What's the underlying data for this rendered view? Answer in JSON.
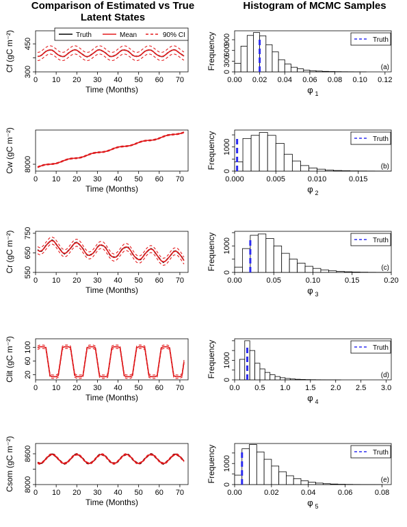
{
  "titles": {
    "left": "Comparison of Estimated vs True Latent States",
    "right": "Histogram of MCMC Samples"
  },
  "colors": {
    "truth": "#000000",
    "mean": "#e41a1c",
    "ci": "#e41a1c",
    "hist_truth": "#2b2bf0"
  },
  "legend_left": [
    "Truth",
    "Mean",
    "90% CI"
  ],
  "legend_right": "Truth",
  "chart_data": [
    {
      "type": "line",
      "panel": "Cf",
      "xlabel": "Time (Months)",
      "ylabel": "Cf (gC m⁻²)",
      "xlim": [
        0,
        74
      ],
      "ylim": [
        300,
        520
      ],
      "xticks": [
        0,
        10,
        20,
        30,
        40,
        50,
        60,
        70
      ],
      "yticks": [
        300,
        375,
        450
      ],
      "ytick_labels": [
        "300",
        "",
        "450"
      ],
      "baseline": 400,
      "amplitude": 18,
      "trend": 0,
      "period": 12,
      "phase": 4,
      "ci": 22,
      "legend": [
        "Truth",
        "Mean",
        "90% CI"
      ]
    },
    {
      "type": "line",
      "panel": "Cw",
      "xlabel": "Time (Months)",
      "ylabel": "Cw (gC m⁻²)",
      "xlim": [
        0,
        74
      ],
      "ylim": [
        7600,
        10000
      ],
      "xticks": [
        0,
        10,
        20,
        30,
        40,
        50,
        60,
        70
      ],
      "yticks": [
        8000
      ],
      "ytick_labels": [
        "8000"
      ],
      "baseline": 7800,
      "amplitude": 40,
      "trend": 29,
      "period": 12,
      "phase": 1,
      "ci": 30
    },
    {
      "type": "line",
      "panel": "Cr",
      "xlabel": "Time (Months)",
      "ylabel": "Cr (gC m⁻²)",
      "xlim": [
        0,
        74
      ],
      "ylim": [
        550,
        760
      ],
      "xticks": [
        0,
        10,
        20,
        30,
        40,
        50,
        60,
        70
      ],
      "yticks": [
        550,
        650,
        750
      ],
      "ytick_labels": [
        "550",
        "650",
        "750"
      ],
      "baseline": 690,
      "amplitude": 30,
      "trend": -0.9,
      "period": 12,
      "phase": 5,
      "ci": 18
    },
    {
      "type": "line",
      "panel": "Clit",
      "xlabel": "Time (Months)",
      "ylabel": "Clit (gC m⁻²)",
      "xlim": [
        0,
        74
      ],
      "ylim": [
        5,
        125
      ],
      "xticks": [
        0,
        10,
        20,
        30,
        40,
        50,
        60,
        70
      ],
      "yticks": [
        20,
        60,
        100
      ],
      "ytick_labels": [
        "20",
        "60",
        "100"
      ],
      "baseline": 58,
      "amplitude": 44,
      "trend": 0,
      "period": 12,
      "phase": 0,
      "ci": 5,
      "square": true
    },
    {
      "type": "line",
      "panel": "Csom",
      "xlabel": "Time (Months)",
      "ylabel": "Csom (gC m⁻²)",
      "xlim": [
        0,
        74
      ],
      "ylim": [
        8000,
        8800
      ],
      "xticks": [
        0,
        10,
        20,
        30,
        40,
        50,
        60,
        70
      ],
      "yticks": [
        8000,
        8300,
        8600
      ],
      "ytick_labels": [
        "8000",
        "",
        "8600"
      ],
      "baseline": 8500,
      "amplitude": 90,
      "trend": 0,
      "period": 12,
      "phase": 5,
      "ci": 15
    },
    {
      "type": "bar",
      "panel": "phi1",
      "tag": "(a)",
      "xlabel": "φ",
      "xlabel_sub": "1",
      "ylabel": "Frequency",
      "xlim": [
        0,
        0.125
      ],
      "ylim": [
        0,
        1150
      ],
      "xticks": [
        0,
        0.02,
        0.04,
        0.06,
        0.08,
        0.1,
        0.12
      ],
      "xtick_labels": [
        "0.00",
        "0.02",
        "0.04",
        "0.06",
        "0.08",
        "0.10",
        "0.12"
      ],
      "yticks": [
        0,
        300,
        600,
        900
      ],
      "ytick_labels": [
        "0",
        "300",
        "600",
        "900"
      ],
      "bin_start": 0,
      "bin_width": 0.005,
      "counts": [
        240,
        720,
        1020,
        1100,
        1010,
        760,
        560,
        340,
        220,
        130,
        85,
        50,
        32,
        22,
        14,
        9,
        6,
        4,
        3,
        2,
        1
      ],
      "truth": 0.02
    },
    {
      "type": "bar",
      "panel": "phi2",
      "tag": "(b)",
      "xlabel": "φ",
      "xlabel_sub": "2",
      "ylabel": "Frequency",
      "xlim": [
        0,
        0.019
      ],
      "ylim": [
        0,
        1700
      ],
      "xticks": [
        0,
        0.005,
        0.01,
        0.015
      ],
      "xtick_labels": [
        "0.000",
        "0.005",
        "0.010",
        "0.015"
      ],
      "yticks": [
        0,
        500,
        1000,
        1500
      ],
      "ytick_labels": [
        "0",
        "",
        "1000",
        ""
      ],
      "bin_start": 0,
      "bin_width": 0.001,
      "counts": [
        380,
        1350,
        1480,
        1600,
        1480,
        1150,
        700,
        420,
        230,
        130,
        80,
        45,
        25,
        15,
        9,
        6,
        4,
        2,
        1
      ],
      "truth": 0.0003
    },
    {
      "type": "bar",
      "panel": "phi3",
      "tag": "(c)",
      "xlabel": "φ",
      "xlabel_sub": "3",
      "ylabel": "Frequency",
      "xlim": [
        0,
        0.2
      ],
      "ylim": [
        0,
        1550
      ],
      "xticks": [
        0,
        0.05,
        0.1,
        0.15,
        0.2
      ],
      "xtick_labels": [
        "0.00",
        "0.05",
        "0.10",
        "0.15",
        "0.20"
      ],
      "yticks": [
        0,
        500,
        1000,
        1500
      ],
      "ytick_labels": [
        "0",
        "",
        "1000",
        ""
      ],
      "bin_start": 0,
      "bin_width": 0.01,
      "counts": [
        200,
        900,
        1400,
        1450,
        1280,
        1000,
        720,
        500,
        350,
        230,
        150,
        95,
        60,
        38,
        24,
        14,
        8,
        4,
        2,
        1
      ],
      "truth": 0.02
    },
    {
      "type": "bar",
      "panel": "phi4",
      "tag": "(d)",
      "xlabel": "φ",
      "xlabel_sub": "4",
      "ylabel": "Frequency",
      "xlim": [
        0,
        3.1
      ],
      "ylim": [
        0,
        2100
      ],
      "xticks": [
        0,
        0.5,
        1,
        1.5,
        2,
        2.5,
        3
      ],
      "xtick_labels": [
        "0.0",
        "0.5",
        "1.0",
        "1.5",
        "2.0",
        "2.5",
        "3.0"
      ],
      "yticks": [
        0,
        500,
        1000,
        1500,
        2000
      ],
      "ytick_labels": [
        "0",
        "",
        "1000",
        "",
        ""
      ],
      "bin_start": 0.1,
      "bin_width": 0.1,
      "counts": [
        1050,
        2000,
        1500,
        850,
        560,
        380,
        260,
        170,
        110,
        70,
        45,
        30,
        20,
        13,
        9,
        6,
        4,
        3,
        2,
        1
      ],
      "truth": 0.25
    },
    {
      "type": "bar",
      "panel": "phi5",
      "tag": "(e)",
      "xlabel": "φ",
      "xlabel_sub": "5",
      "ylabel": "Frequency",
      "xlim": [
        0,
        0.085
      ],
      "ylim": [
        0,
        1950
      ],
      "xticks": [
        0,
        0.02,
        0.04,
        0.06,
        0.08
      ],
      "xtick_labels": [
        "0.00",
        "0.02",
        "0.04",
        "0.06",
        "0.08"
      ],
      "yticks": [
        0,
        500,
        1000,
        1500
      ],
      "ytick_labels": [
        "0",
        "",
        "1000",
        ""
      ],
      "bin_start": 0,
      "bin_width": 0.004,
      "counts": [
        450,
        1700,
        1900,
        1550,
        1200,
        880,
        610,
        420,
        280,
        180,
        115,
        70,
        42,
        26,
        15,
        9,
        5,
        3,
        2,
        1
      ],
      "truth": 0.004
    }
  ]
}
